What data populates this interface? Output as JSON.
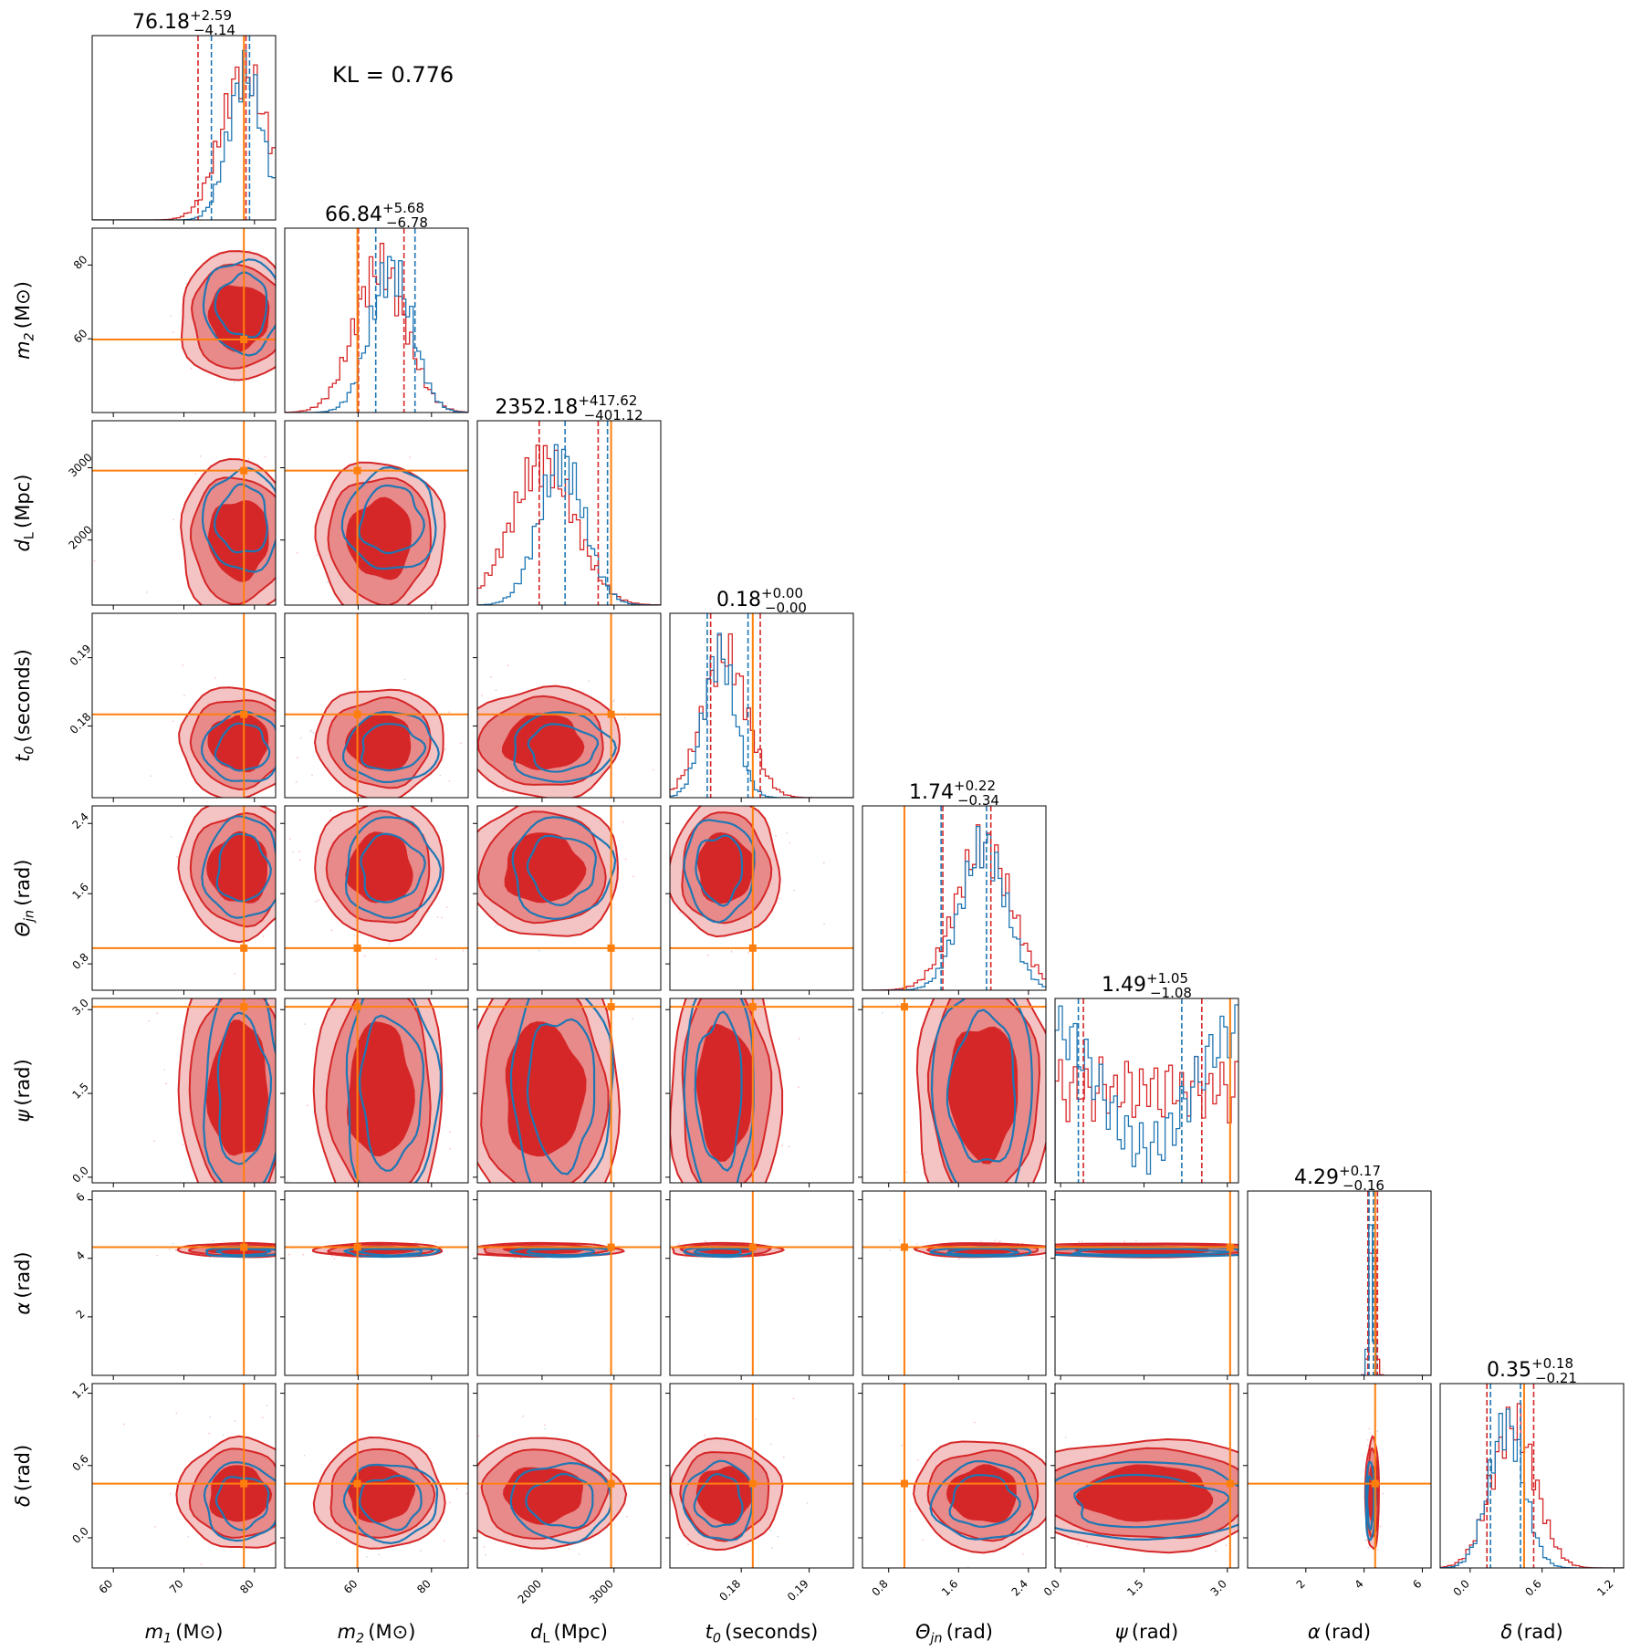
{
  "chart_data": {
    "type": "corner",
    "annotation": "KL = 0.776",
    "colors": {
      "red": "#d62728",
      "blue": "#1f77b4",
      "truth": "#ff7f0e",
      "red_fill_light": "#f4c4c4",
      "red_fill_mid": "#e88a8a"
    },
    "parameters": [
      {
        "name": "m1",
        "label_main": "m",
        "label_sub": "1",
        "label_unit": "(M",
        "label_suffix": ")",
        "range": [
          57,
          83
        ],
        "ticks": [
          60,
          70,
          80
        ],
        "tick_labels": [
          "60",
          "70",
          "80"
        ],
        "truth": 78.5,
        "title_median": "76.18",
        "title_plus": "+2.59",
        "title_minus": "−4.14",
        "red_quantiles": [
          72.0,
          78.8
        ],
        "blue_quantiles": [
          73.9,
          79.3
        ]
      },
      {
        "name": "m2",
        "label_main": "m",
        "label_sub": "2",
        "label_unit": "(M",
        "label_suffix": ")",
        "range": [
          40,
          90
        ],
        "ticks": [
          60,
          80
        ],
        "tick_labels": [
          "60",
          "80"
        ],
        "truth": 59.8,
        "title_median": "66.84",
        "title_plus": "+5.68",
        "title_minus": "−6.78",
        "red_quantiles": [
          60.1,
          72.5
        ],
        "blue_quantiles": [
          64.8,
          75.5
        ]
      },
      {
        "name": "dL",
        "label_main": "d",
        "label_sub": "L",
        "label_unit": "(Mpc)",
        "label_suffix": "",
        "range": [
          1100,
          3650
        ],
        "ticks": [
          2000,
          3000
        ],
        "tick_labels": [
          "2000",
          "3000"
        ],
        "truth": 2960,
        "title_median": "2352.18",
        "title_plus": "+417.62",
        "title_minus": "−401.12",
        "red_quantiles": [
          1960,
          2780
        ],
        "blue_quantiles": [
          2320,
          2910
        ]
      },
      {
        "name": "t0",
        "label_main": "t",
        "label_sub": "0",
        "label_unit": "(seconds)",
        "label_suffix": "",
        "range": [
          0.1695,
          0.1965
        ],
        "ticks": [
          0.18,
          0.19
        ],
        "tick_labels": [
          "0.18",
          "0.19"
        ],
        "truth": 0.1817,
        "title_median": "0.18",
        "title_plus": "+0.00",
        "title_minus": "−0.00",
        "red_quantiles": [
          0.1755,
          0.1828
        ],
        "blue_quantiles": [
          0.175,
          0.181
        ]
      },
      {
        "name": "theta_jn",
        "label_main": "Θ",
        "label_sub": "jn",
        "label_unit": "(rad)",
        "label_suffix": "",
        "range": [
          0.5,
          2.6
        ],
        "ticks": [
          0.8,
          1.6,
          2.4
        ],
        "tick_labels": [
          "0.8",
          "1.6",
          "2.4"
        ],
        "truth": 0.98,
        "title_median": "1.74",
        "title_plus": "+0.22",
        "title_minus": "−0.34",
        "red_quantiles": [
          1.42,
          1.97
        ],
        "blue_quantiles": [
          1.4,
          1.92
        ]
      },
      {
        "name": "psi",
        "label_main": "ψ",
        "label_sub": "",
        "label_unit": "(rad)",
        "label_suffix": "",
        "range": [
          -0.1,
          3.2
        ],
        "ticks": [
          0.0,
          1.5,
          3.0
        ],
        "tick_labels": [
          "0.0",
          "1.5",
          "3.0"
        ],
        "truth": 3.05,
        "title_median": "1.49",
        "title_plus": "+1.05",
        "title_minus": "−1.08",
        "red_quantiles": [
          0.41,
          2.54
        ],
        "blue_quantiles": [
          0.32,
          2.18
        ]
      },
      {
        "name": "alpha",
        "label_main": "α",
        "label_sub": "",
        "label_unit": "(rad)",
        "label_suffix": "",
        "range": [
          0,
          6.3
        ],
        "ticks": [
          2,
          4,
          6
        ],
        "tick_labels": [
          "2",
          "4",
          "6"
        ],
        "truth": 4.38,
        "title_median": "4.29",
        "title_plus": "+0.17",
        "title_minus": "−0.16",
        "red_quantiles": [
          4.13,
          4.46
        ],
        "blue_quantiles": [
          4.17,
          4.32
        ]
      },
      {
        "name": "delta",
        "label_main": "δ",
        "label_sub": "",
        "label_unit": "(rad)",
        "label_suffix": "",
        "range": [
          -0.25,
          1.28
        ],
        "ticks": [
          0.0,
          0.6,
          1.2
        ],
        "tick_labels": [
          "0.0",
          "0.6",
          "1.2"
        ],
        "truth": 0.45,
        "title_median": "0.35",
        "title_plus": "+0.18",
        "title_minus": "−0.21",
        "red_quantiles": [
          0.14,
          0.53
        ],
        "blue_quantiles": [
          0.17,
          0.42
        ]
      }
    ]
  }
}
